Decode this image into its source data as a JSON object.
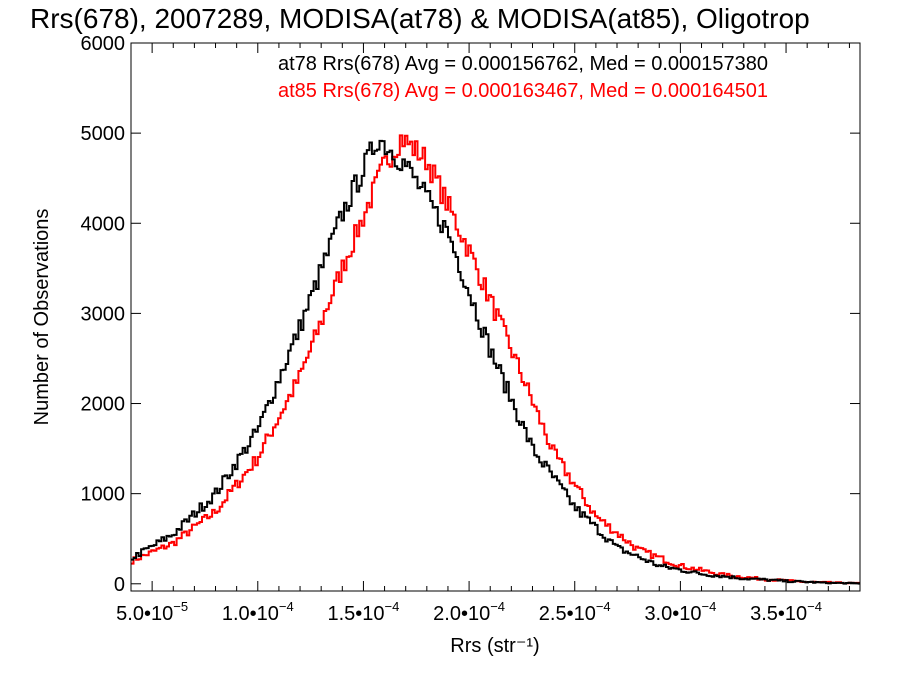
{
  "chart_data": {
    "type": "line",
    "title": "Rrs(678), 2007289, MODISA(at78) & MODISA(at85), Oligotrop",
    "xlabel": "Rrs (str⁻¹)",
    "ylabel": "Number of Observations",
    "xlim": [
      4e-05,
      0.000385
    ],
    "ylim": [
      -80,
      6000
    ],
    "x_ticks": [
      {
        "value": 5e-05,
        "mant": "5.0",
        "exp": "-5"
      },
      {
        "value": 0.0001,
        "mant": "1.0",
        "exp": "-4"
      },
      {
        "value": 0.00015,
        "mant": "1.5",
        "exp": "-4"
      },
      {
        "value": 0.0002,
        "mant": "2.0",
        "exp": "-4"
      },
      {
        "value": 0.00025,
        "mant": "2.5",
        "exp": "-4"
      },
      {
        "value": 0.0003,
        "mant": "3.0",
        "exp": "-4"
      },
      {
        "value": 0.00035,
        "mant": "3.5",
        "exp": "-4"
      }
    ],
    "y_ticks": [
      0,
      1000,
      2000,
      3000,
      4000,
      5000,
      6000
    ],
    "grid": false,
    "legend_position": "top-right",
    "series": [
      {
        "text": "at78 Rrs(678) Avg = 0.000156762, Med = 0.000157380",
        "color": "#000000",
        "x": [
          4e-05,
          6e-05,
          8e-05,
          0.0001,
          0.00012,
          0.00014,
          0.000157,
          0.00017,
          0.00019,
          0.00021,
          0.00023,
          0.00025,
          0.00027,
          0.00029,
          0.00031,
          0.00033,
          0.00035,
          0.00037,
          0.000385
        ],
        "y": [
          280,
          550,
          1000,
          1700,
          2850,
          4100,
          4950,
          4650,
          3900,
          2600,
          1500,
          850,
          400,
          200,
          110,
          60,
          30,
          10,
          5
        ]
      },
      {
        "text": "at85 Rrs(678) Avg = 0.000163467, Med = 0.000164501",
        "color": "#ff0000",
        "x": [
          4e-05,
          6e-05,
          8e-05,
          0.0001,
          0.00012,
          0.00014,
          0.00016,
          0.000168,
          0.00018,
          0.0002,
          0.00022,
          0.00024,
          0.00026,
          0.00028,
          0.0003,
          0.00032,
          0.00034,
          0.00036,
          0.000385
        ],
        "y": [
          250,
          450,
          800,
          1400,
          2300,
          3500,
          4650,
          4950,
          4700,
          3700,
          2600,
          1450,
          750,
          380,
          200,
          100,
          50,
          20,
          5
        ]
      }
    ]
  }
}
